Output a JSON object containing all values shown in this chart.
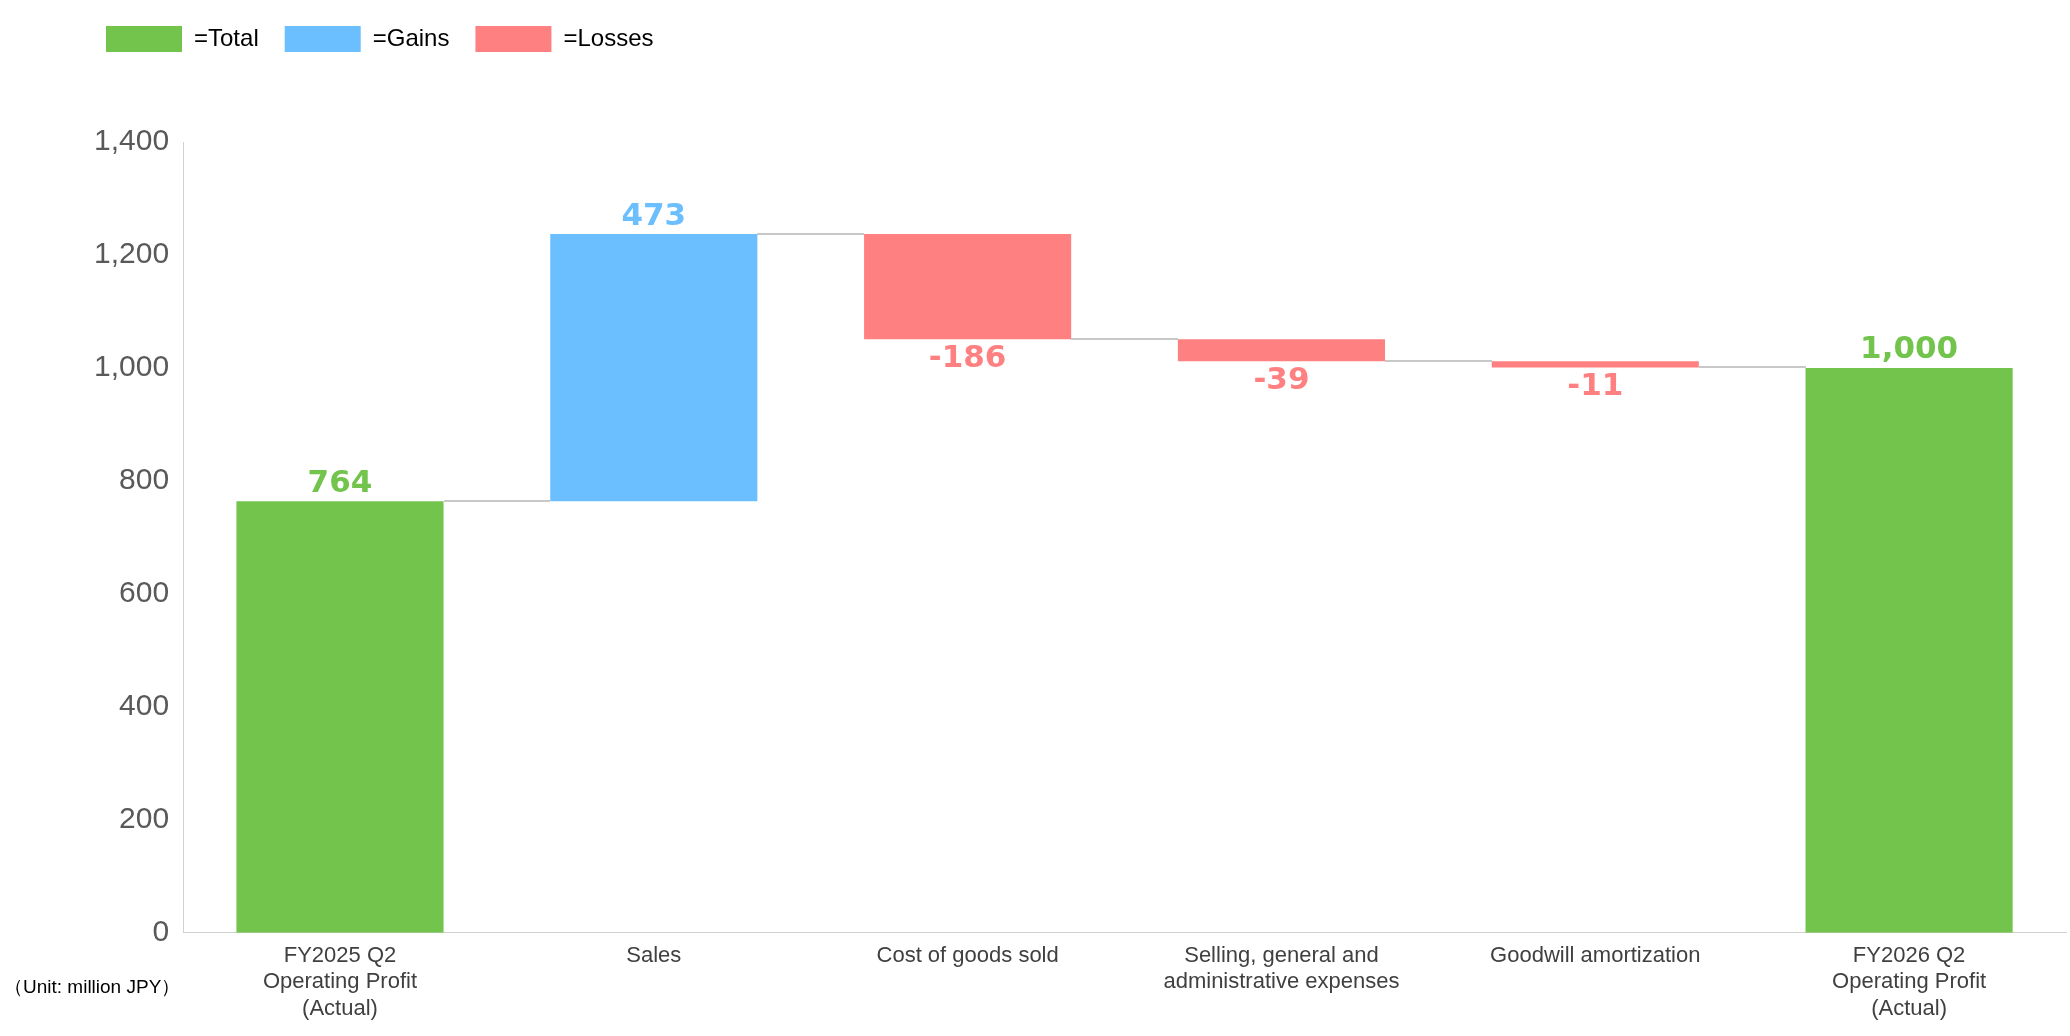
{
  "chart_data": {
    "type": "bar",
    "categories": [
      "FY2025 Q2\nOperating Profit\n(Actual)",
      "Sales",
      "Cost of goods sold",
      "Selling, general and\nadministrative expenses",
      "Goodwill amortization",
      "FY2026 Q2\nOperating Profit\n(Actual)"
    ],
    "series": [
      {
        "name": "=Total",
        "color": "#72c44c",
        "values": [
          764,
          null,
          null,
          null,
          null,
          1000
        ],
        "base": [
          0,
          null,
          null,
          null,
          null,
          0
        ]
      },
      {
        "name": "=Gains",
        "color": "#6bbfff",
        "values": [
          null,
          473,
          null,
          null,
          null,
          null
        ],
        "base": [
          null,
          764,
          null,
          null,
          null,
          null
        ]
      },
      {
        "name": "=Losses",
        "color": "#ff8080",
        "values": [
          null,
          null,
          -186,
          -39,
          -11,
          null
        ],
        "base": [
          null,
          null,
          1237,
          1051,
          1012,
          null
        ]
      }
    ],
    "value_labels": [
      "764",
      "473",
      "-186",
      "-39",
      "-11",
      "1,000"
    ],
    "ylim": [
      0,
      1400
    ],
    "yticks": [
      0,
      200,
      400,
      600,
      800,
      {
        "value": 1000,
        "label": "1,000"
      },
      {
        "value": 1200,
        "label": "1,200"
      },
      {
        "value": 1400,
        "label": "1,400"
      }
    ],
    "grid": false,
    "legend": "top left",
    "annotations": [
      "（Unit: million JPY）"
    ]
  }
}
